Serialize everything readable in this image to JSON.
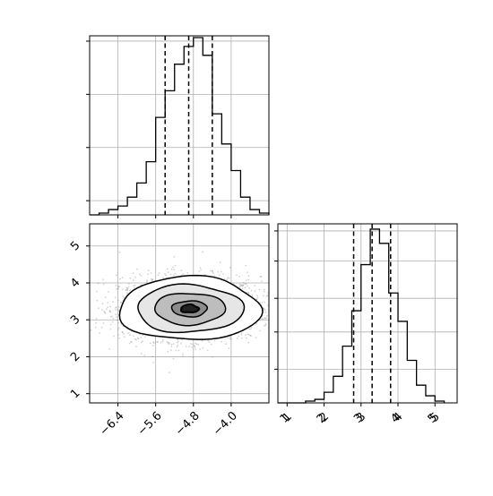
{
  "chart_data": {
    "type": "corner",
    "parameters": [
      "",
      ""
    ],
    "colors": {
      "line": "#000000",
      "grid": "#b0b0b0",
      "scatter": "#808080"
    },
    "grid": true,
    "panels": [
      {
        "id": "hist_x",
        "type": "histogram",
        "xlim": [
          -7.0,
          -3.2
        ],
        "ylim": [
          0,
          1.0
        ],
        "bin_edges": [
          -7.0,
          -6.8,
          -6.6,
          -6.4,
          -6.2,
          -6.0,
          -5.8,
          -5.6,
          -5.4,
          -5.2,
          -5.0,
          -4.8,
          -4.6,
          -4.4,
          -4.2,
          -4.0,
          -3.8,
          -3.6,
          -3.4,
          -3.2
        ],
        "counts": [
          0.0,
          0.01,
          0.03,
          0.05,
          0.1,
          0.18,
          0.3,
          0.55,
          0.7,
          0.85,
          0.95,
          1.0,
          0.9,
          0.57,
          0.4,
          0.25,
          0.1,
          0.03,
          0.01
        ],
        "quantile_lines": [
          -5.4,
          -4.9,
          -4.4
        ],
        "xticks": [
          -6.4,
          -5.6,
          -4.8,
          -4.0
        ],
        "xtick_labels": [],
        "yticks": [
          0.08,
          0.38,
          0.68,
          0.98
        ]
      },
      {
        "id": "joint",
        "type": "2d-density",
        "xlim": [
          -7.0,
          -3.2
        ],
        "ylim": [
          0.75,
          5.6
        ],
        "center": [
          -4.88,
          3.3
        ],
        "spread": [
          0.75,
          0.43
        ],
        "contour_levels_sigma": [
          0.5,
          1.0,
          1.5,
          2.0
        ],
        "xticks": [
          -6.4,
          -5.6,
          -4.8,
          -4.0
        ],
        "xtick_labels": [
          "−6.4",
          "−5.6",
          "−4.8",
          "−4.0"
        ],
        "yticks": [
          1,
          2,
          3,
          4,
          5
        ],
        "ytick_labels": [
          "1",
          "2",
          "3",
          "4",
          "5"
        ]
      },
      {
        "id": "hist_y",
        "type": "histogram",
        "xlim": [
          0.75,
          5.6
        ],
        "ylim": [
          0,
          1.0
        ],
        "bin_edges": [
          0.75,
          1.0,
          1.25,
          1.5,
          1.75,
          2.0,
          2.25,
          2.5,
          2.75,
          3.0,
          3.25,
          3.5,
          3.75,
          4.0,
          4.25,
          4.5,
          4.75,
          5.0,
          5.25
        ],
        "counts": [
          0.0,
          0.0,
          0.0,
          0.01,
          0.02,
          0.06,
          0.15,
          0.32,
          0.52,
          0.78,
          0.98,
          0.9,
          0.62,
          0.46,
          0.24,
          0.1,
          0.04,
          0.01
        ],
        "quantile_lines": [
          2.8,
          3.3,
          3.8
        ],
        "xticks": [
          1,
          2,
          3,
          4,
          5
        ],
        "xtick_labels": [
          "1",
          "2",
          "3",
          "4",
          "5"
        ],
        "yticks": [
          0.19,
          0.4,
          0.59,
          0.8,
          0.97
        ]
      }
    ]
  }
}
